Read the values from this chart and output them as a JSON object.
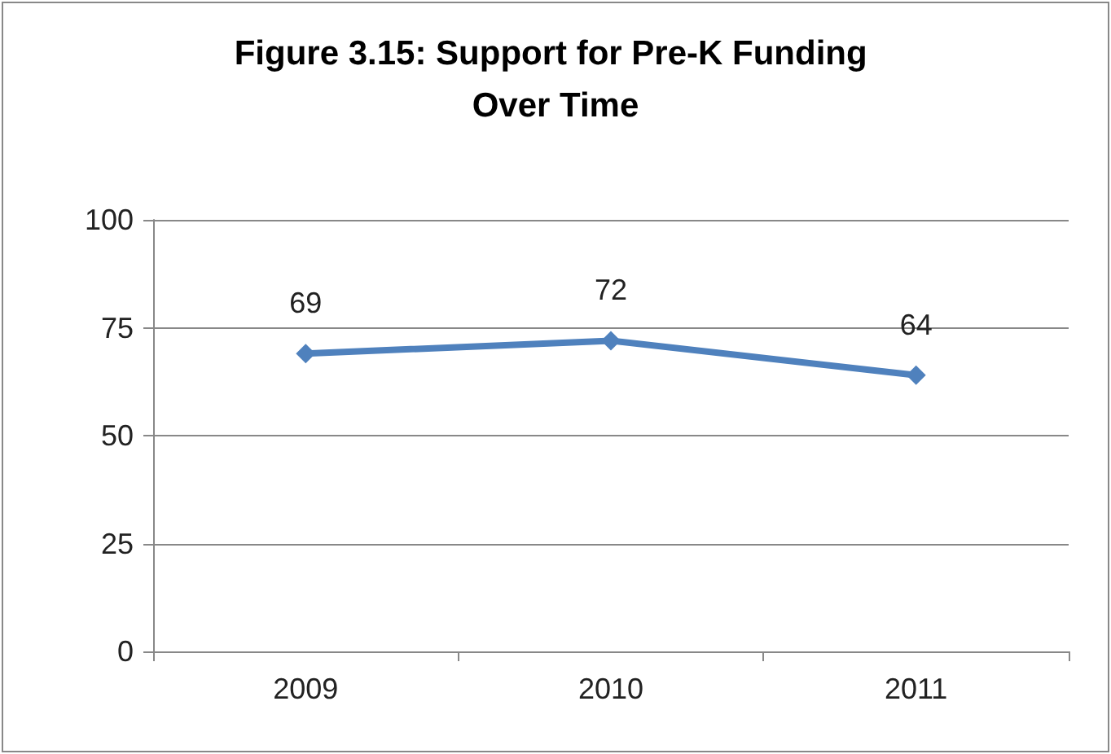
{
  "chart_data": {
    "type": "line",
    "title": "Figure 3.15: Support for Pre-K Funding Over Time",
    "categories": [
      "2009",
      "2010",
      "2011"
    ],
    "series": [
      {
        "color": "#4f81bd",
        "values": [
          69,
          72,
          64
        ]
      }
    ],
    "ylim": [
      0,
      100
    ],
    "yticks": [
      0,
      25,
      50,
      75,
      100
    ],
    "grid": "y",
    "marker": "diamond",
    "data_labels": true
  }
}
